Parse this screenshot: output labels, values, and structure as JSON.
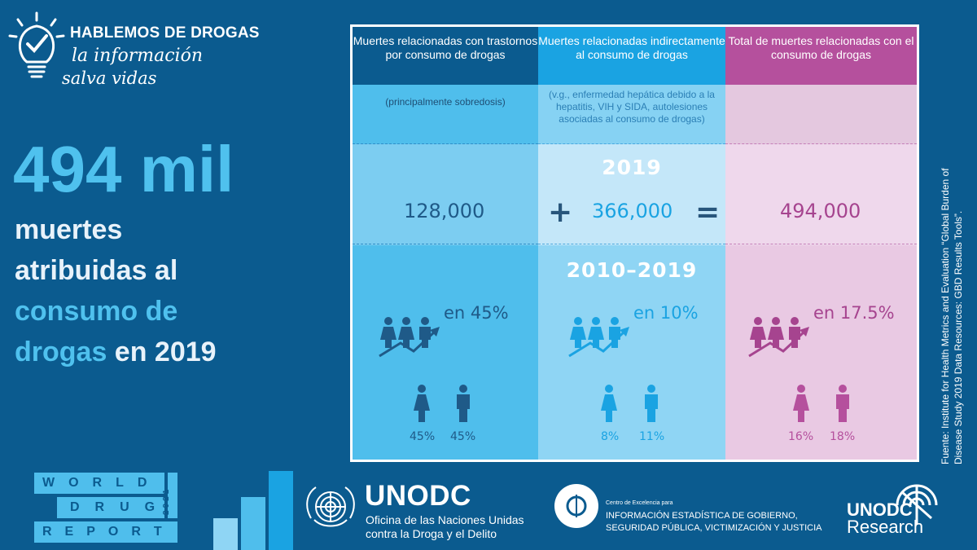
{
  "header": {
    "title": "HABLEMOS DE DROGAS",
    "line2": "la información",
    "line3": "salva vidas"
  },
  "headline": {
    "big_number": "494 mil",
    "line1": "muertes",
    "line2": "atribuidas al",
    "line3_highlight": "consumo de",
    "line4_highlight": "drogas",
    "line4_rest": " en 2019"
  },
  "table": {
    "col1": {
      "header": "Muertes relacionadas con trastornos por consumo de drogas",
      "note": "(principalmente sobredosis)",
      "value_2019": "128,000",
      "increase": "en 45%",
      "female_pct": "45%",
      "male_pct": "45%"
    },
    "col2": {
      "header": "Muertes relacionadas indirectamente al consumo de drogas",
      "note": "(v.g., enfermedad hepática debido a la hepatitis, VIH y SIDA, autolesiones asociadas al consumo de drogas)",
      "value_2019": "366,000",
      "increase": "en 10%",
      "female_pct": "8%",
      "male_pct": "11%"
    },
    "col3": {
      "header": "Total de muertes relacionadas con el consumo de drogas",
      "note": "",
      "value_2019": "494,000",
      "increase": "en 17.5%",
      "female_pct": "16%",
      "male_pct": "18%"
    },
    "year_label": "2019",
    "period_label": "2010–2019",
    "plus": "+",
    "equals": "="
  },
  "source": "Fuente: Institute for Health Metrics and Evaluation “Global Burden of Disease Study 2019 Data Resources: GBD Results Tools”.",
  "footer": {
    "wdr_word1": "WORLD",
    "wdr_word2": "DRUG",
    "wdr_word3": "REPORT",
    "wdr_year": "2021",
    "unodc": "UNODC",
    "unodc_line1": "Oficina de las Naciones Unidas",
    "unodc_line2": "contra la Droga y el Delito",
    "ce_small": "Centro de Excelencia para",
    "ce_line1": "INFORMACIÓN ESTADÍSTICA DE GOBIERNO,",
    "ce_line2": "SEGURIDAD PÚBLICA, VICTIMIZACIÓN Y JUSTICIA",
    "research_top": "UNODC",
    "research_bottom": "Research"
  },
  "colors": {
    "background": "#0b5b8f",
    "col1_head": "#0b5b8f",
    "col2_head": "#1aa3e2",
    "col3_head": "#b5509d",
    "highlight": "#4fc1ee"
  }
}
